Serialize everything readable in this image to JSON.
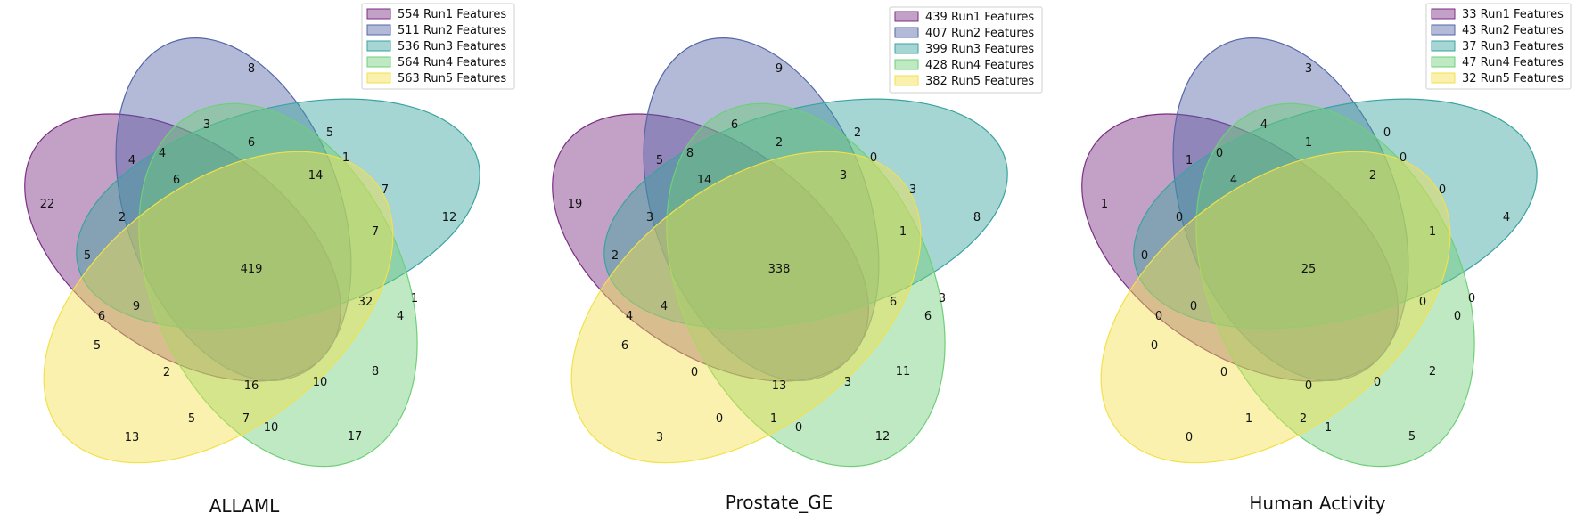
{
  "colors": {
    "run1": "#7b2e83",
    "run2": "#5566a8",
    "run3": "#3aa39e",
    "run4": "#6fcf78",
    "run5": "#f2e14a"
  },
  "panels": [
    {
      "title": "ALLAML",
      "legend": [
        "554 Run1 Features",
        "511 Run2 Features",
        "536 Run3 Features",
        "564 Run4 Features",
        "563 Run5 Features"
      ],
      "counts": [
        "8",
        "3",
        "6",
        "5",
        "4",
        "4",
        "1",
        "22",
        "6",
        "14",
        "7",
        "12",
        "2",
        "7",
        "5",
        "419",
        "1",
        "9",
        "32",
        "6",
        "4",
        "5",
        "8",
        "2",
        "16",
        "10",
        "5",
        "7",
        "10",
        "13",
        "17"
      ]
    },
    {
      "title": "Prostate_GE",
      "legend": [
        "439 Run1 Features",
        "407 Run2 Features",
        "399 Run3 Features",
        "428 Run4 Features",
        "382 Run5 Features"
      ],
      "counts": [
        "9",
        "6",
        "2",
        "2",
        "5",
        "8",
        "0",
        "19",
        "14",
        "3",
        "3",
        "8",
        "3",
        "1",
        "2",
        "338",
        "3",
        "4",
        "6",
        "4",
        "6",
        "6",
        "0",
        "11",
        "13",
        "3",
        "0",
        "1",
        "0",
        "3",
        "12"
      ]
    },
    {
      "title": "Human Activity",
      "legend": [
        "33 Run1 Features",
        "43 Run2 Features",
        "37 Run3 Features",
        "47 Run4 Features",
        "32 Run5 Features"
      ],
      "counts": [
        "3",
        "4",
        "1",
        "0",
        "1",
        "0",
        "0",
        "1",
        "4",
        "2",
        "0",
        "4",
        "0",
        "1",
        "0",
        "25",
        "0",
        "0",
        "0",
        "0",
        "0",
        "0",
        "0",
        "2",
        "0",
        "0",
        "1",
        "2",
        "1",
        "0",
        "5"
      ]
    }
  ]
}
